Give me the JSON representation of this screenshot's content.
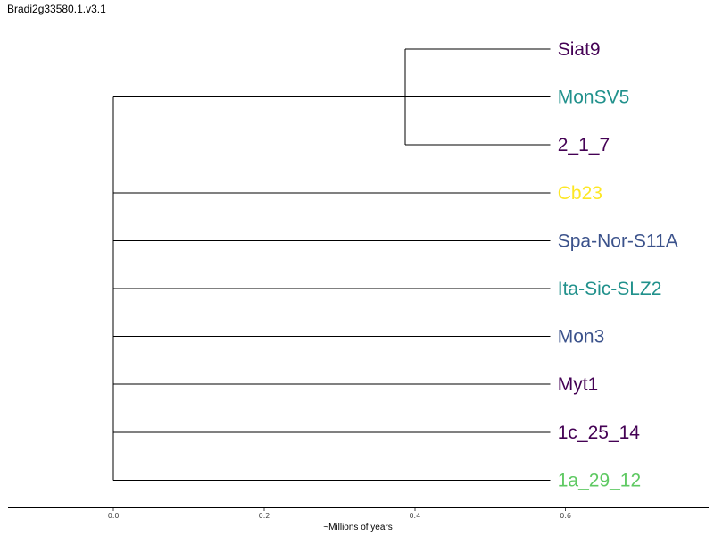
{
  "chart_data": {
    "type": "tree",
    "title": "Bradi2g33580.1.v3.1",
    "xlabel": "~Millions of years",
    "xlim": [
      -0.14,
      0.79
    ],
    "xticks": [
      0.0,
      0.2,
      0.4,
      0.6
    ],
    "xtick_labels": [
      "0.0",
      "0.2",
      "0.4",
      "0.6"
    ],
    "root_x": 0.0,
    "tip_x": 0.58,
    "clades": [
      {
        "node_x": 0.387,
        "tips": [
          0,
          1,
          2
        ]
      }
    ],
    "tips": [
      {
        "label": "Siat9",
        "color": "#440154"
      },
      {
        "label": "MonSV5",
        "color": "#21918c"
      },
      {
        "label": "2_1_7",
        "color": "#440154"
      },
      {
        "label": "Cb23",
        "color": "#fde725"
      },
      {
        "label": "Spa-Nor-S11A",
        "color": "#3b528b"
      },
      {
        "label": "Ita-Sic-SLZ2",
        "color": "#21918c"
      },
      {
        "label": "Mon3",
        "color": "#3b528b"
      },
      {
        "label": "Myt1",
        "color": "#440154"
      },
      {
        "label": "1c_25_14",
        "color": "#440154"
      },
      {
        "label": "1a_29_12",
        "color": "#5ec962"
      }
    ]
  }
}
